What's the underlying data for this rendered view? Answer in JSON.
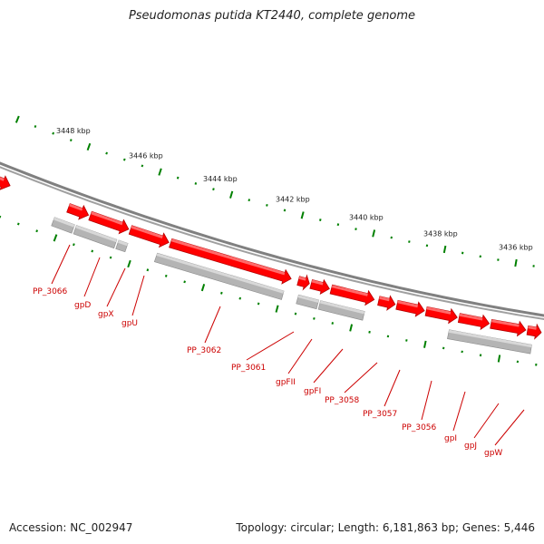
{
  "header": {
    "title": "Pseudomonas putida KT2440, complete genome"
  },
  "footer": {
    "accession": "Accession: NC_002947",
    "summary": "Topology: circular; Length: 6,181,863 bp; Genes: 5,446"
  },
  "colors": {
    "gene_forward": "#ff0000",
    "gene_top": "#ff6a6a",
    "gene_dark": "#b40000",
    "gene_reverse": "#b4b4b4",
    "backbone": "#808080",
    "tick": "#008000",
    "label": "#cc0000",
    "text": "#222222"
  },
  "scale_labels": [
    "3448 kbp",
    "3446 kbp",
    "3444 kbp",
    "3442 kbp",
    "3440 kbp",
    "3438 kbp",
    "3436 kbp"
  ],
  "gene_labels": [
    "PP_3066",
    "gpD",
    "gpX",
    "gpU",
    "PP_3062",
    "PP_3061",
    "gpFII",
    "gpFI",
    "PP_3058",
    "PP_3057",
    "PP_3056",
    "gpI",
    "gpJ",
    "gpW"
  ]
}
